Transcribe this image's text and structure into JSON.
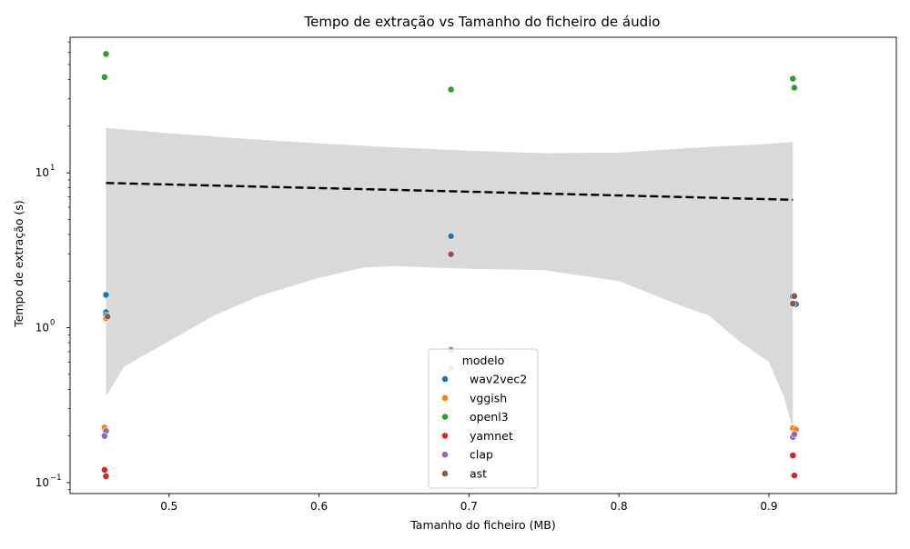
{
  "chart_data": {
    "type": "scatter",
    "title": "Tempo de extração vs Tamanho do ficheiro de áudio",
    "xlabel": "Tamanho do ficheiro (MB)",
    "ylabel": "Tempo de extração (s)",
    "xlim": [
      0.434,
      0.985
    ],
    "ylim": [
      0.085,
      75
    ],
    "yscale": "log",
    "x_ticks": [
      0.5,
      0.6,
      0.7,
      0.8,
      0.9
    ],
    "x_tick_labels": [
      "0.5",
      "0.6",
      "0.7",
      "0.8",
      "0.9"
    ],
    "y_ticks": [
      {
        "value": 0.1,
        "base": "10",
        "exp": "−1"
      },
      {
        "value": 1,
        "base": "10",
        "exp": "0"
      },
      {
        "value": 10,
        "base": "10",
        "exp": "1"
      }
    ],
    "grid": false,
    "legend": {
      "title": "modelo",
      "placement": "lower center"
    },
    "series": [
      {
        "name": "wav2vec2",
        "color": "#1f77b4",
        "points": [
          [
            0.458,
            1.63
          ],
          [
            0.458,
            1.26
          ],
          [
            0.458,
            1.2
          ],
          [
            0.688,
            3.9
          ],
          [
            0.916,
            1.6
          ],
          [
            0.918,
            1.42
          ]
        ]
      },
      {
        "name": "vggish",
        "color": "#ff7f0e",
        "points": [
          [
            0.457,
            0.227
          ],
          [
            0.458,
            1.15
          ],
          [
            0.688,
            0.55
          ],
          [
            0.916,
            0.225
          ],
          [
            0.918,
            0.22
          ]
        ]
      },
      {
        "name": "openl3",
        "color": "#2ca02c",
        "points": [
          [
            0.458,
            58.5
          ],
          [
            0.457,
            41.5
          ],
          [
            0.688,
            34.5
          ],
          [
            0.916,
            40.5
          ],
          [
            0.917,
            35.5
          ]
        ]
      },
      {
        "name": "yamnet",
        "color": "#d62728",
        "points": [
          [
            0.457,
            0.121
          ],
          [
            0.458,
            0.11
          ],
          [
            0.916,
            0.15
          ],
          [
            0.917,
            0.111
          ]
        ]
      },
      {
        "name": "clap",
        "color": "#9467bd",
        "points": [
          [
            0.458,
            0.215
          ],
          [
            0.457,
            0.2
          ],
          [
            0.688,
            0.72
          ],
          [
            0.916,
            0.197
          ],
          [
            0.917,
            0.205
          ]
        ]
      },
      {
        "name": "ast",
        "color": "#8c564b",
        "points": [
          [
            0.459,
            1.18
          ],
          [
            0.688,
            2.98
          ],
          [
            0.917,
            1.6
          ],
          [
            0.916,
            1.43
          ]
        ]
      }
    ],
    "trend": {
      "style": "dashed",
      "color": "#000000",
      "points": [
        [
          0.458,
          8.6
        ],
        [
          0.688,
          7.6
        ],
        [
          0.916,
          6.7
        ]
      ]
    },
    "confidence_band": {
      "color": "#d9d9d9",
      "upper": [
        [
          0.458,
          19.5
        ],
        [
          0.5,
          18.0
        ],
        [
          0.55,
          16.6
        ],
        [
          0.6,
          15.5
        ],
        [
          0.65,
          14.6
        ],
        [
          0.7,
          13.9
        ],
        [
          0.75,
          13.4
        ],
        [
          0.8,
          13.5
        ],
        [
          0.85,
          14.5
        ],
        [
          0.9,
          15.4
        ],
        [
          0.916,
          15.8
        ]
      ],
      "lower": [
        [
          0.458,
          0.36
        ],
        [
          0.47,
          0.56
        ],
        [
          0.5,
          0.82
        ],
        [
          0.53,
          1.2
        ],
        [
          0.56,
          1.6
        ],
        [
          0.6,
          2.1
        ],
        [
          0.63,
          2.45
        ],
        [
          0.65,
          2.5
        ],
        [
          0.7,
          2.4
        ],
        [
          0.75,
          2.35
        ],
        [
          0.8,
          2.0
        ],
        [
          0.84,
          1.4
        ],
        [
          0.86,
          1.2
        ],
        [
          0.88,
          0.82
        ],
        [
          0.9,
          0.6
        ],
        [
          0.91,
          0.36
        ],
        [
          0.916,
          0.22
        ]
      ]
    }
  }
}
